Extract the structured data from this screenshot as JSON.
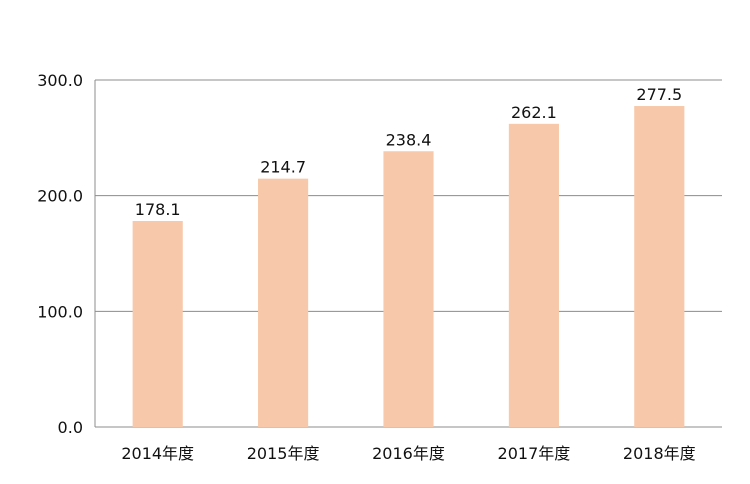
{
  "chart_data": {
    "type": "bar",
    "categories": [
      "2014年度",
      "2015年度",
      "2016年度",
      "2017年度",
      "2018年度"
    ],
    "values": [
      178.1,
      214.7,
      238.4,
      262.1,
      277.5
    ],
    "data_labels": [
      "178.1",
      "214.7",
      "238.4",
      "262.1",
      "277.5"
    ],
    "yticks": [
      "0.0",
      "100.0",
      "200.0",
      "300.0"
    ],
    "ylim": [
      0,
      300
    ],
    "grid": true,
    "bar_color": "#F7C9AA",
    "title": "",
    "xlabel": "",
    "ylabel": ""
  }
}
